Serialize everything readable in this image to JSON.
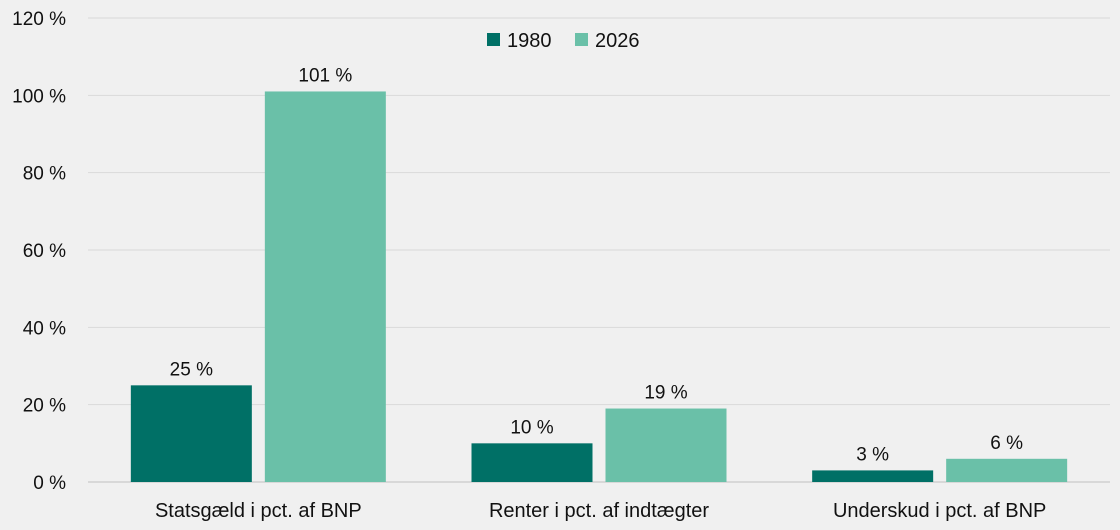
{
  "chart_data": {
    "type": "bar",
    "categories": [
      "Statsgæld i pct. af BNP",
      "Renter i pct. af indtægter",
      "Underskud i pct. af BNP"
    ],
    "series": [
      {
        "name": "1980",
        "values": [
          25,
          10,
          3
        ],
        "labels": [
          "25 %",
          "10 %",
          "3 %"
        ],
        "color": "#007066"
      },
      {
        "name": "2026",
        "values": [
          101,
          19,
          6
        ],
        "labels": [
          "101 %",
          "19 %",
          "6 %"
        ],
        "color": "#6ac0a8"
      }
    ],
    "yticks": [
      0,
      20,
      40,
      60,
      80,
      100,
      120
    ],
    "ytick_labels": [
      "0 %",
      "20 %",
      "40 %",
      "60 %",
      "80 %",
      "100 %",
      "120 %"
    ],
    "ylim": [
      0,
      120
    ],
    "legend_position": "top-center",
    "grid": true
  },
  "colors": {
    "background": "#f0f0f0",
    "gridline": "#d9d9d9"
  }
}
